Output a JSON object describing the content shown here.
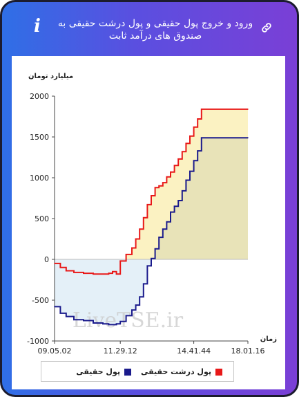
{
  "header": {
    "title": "ورود و خروج پول حقیقی و پول درشت حقیقی به صندوق های درآمد ثابت",
    "info_icon": "info-icon",
    "link_icon": "link-icon",
    "gradient_colors": [
      "#2f6fe6",
      "#7a3fd6"
    ]
  },
  "chart_data": {
    "type": "line",
    "ylabel": "میلیارد تومان",
    "xlabel": "زمان",
    "ylim": [
      -1000,
      2000
    ],
    "yticks": [
      -1000,
      -500,
      0,
      500,
      1000,
      1500,
      2000
    ],
    "xtick_labels": [
      "09.05.02",
      "11.29.12",
      "14.41.44",
      "18.01.16"
    ],
    "xlim": [
      0,
      100
    ],
    "xtick_positions": [
      0,
      34,
      72,
      100
    ],
    "watermark": "LiveTSE.ir",
    "grid": false,
    "legend_position": "bottom",
    "series": [
      {
        "name": "پول حقیقی",
        "color": "#1a1a8c",
        "fill_positive": "#e8e3b8",
        "fill_negative": "#e4f0f8",
        "x": [
          0,
          3,
          6,
          10,
          15,
          20,
          25,
          28,
          30,
          32,
          34,
          37,
          40,
          42,
          44,
          46,
          48,
          50,
          52,
          54,
          56,
          58,
          60,
          62,
          64,
          66,
          68,
          70,
          72,
          74,
          76,
          100
        ],
        "values": [
          -580,
          -660,
          -700,
          -740,
          -750,
          -780,
          -790,
          -800,
          -800,
          -790,
          -760,
          -690,
          -620,
          -560,
          -460,
          -300,
          -80,
          10,
          130,
          270,
          370,
          460,
          580,
          650,
          720,
          840,
          970,
          1080,
          1210,
          1330,
          1490,
          1490
        ]
      },
      {
        "name": "پول درشت حقیقی",
        "color": "#e81818",
        "fill_positive": "#fbf2c2",
        "fill_negative": "#f7efd8",
        "x": [
          0,
          3,
          6,
          10,
          15,
          20,
          25,
          28,
          30,
          32,
          34,
          37,
          40,
          42,
          44,
          46,
          48,
          50,
          52,
          54,
          56,
          58,
          60,
          62,
          64,
          66,
          68,
          70,
          72,
          74,
          76,
          100
        ],
        "values": [
          -50,
          -100,
          -140,
          -160,
          -170,
          -180,
          -180,
          -170,
          -150,
          -180,
          -20,
          60,
          140,
          250,
          370,
          510,
          670,
          780,
          880,
          900,
          940,
          1010,
          1070,
          1150,
          1230,
          1320,
          1420,
          1510,
          1620,
          1720,
          1840,
          1840
        ]
      }
    ]
  },
  "legend": {
    "items": [
      {
        "label": "پول درشت حقیقی",
        "color": "#e81818"
      },
      {
        "label": "پول حقیقی",
        "color": "#1a1a8c"
      }
    ]
  }
}
